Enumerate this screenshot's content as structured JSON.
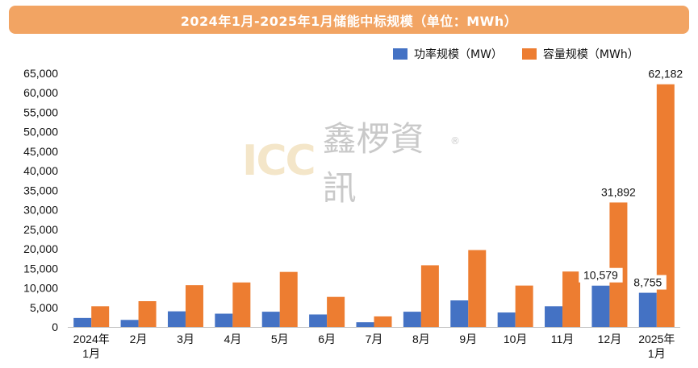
{
  "title": "2024年1月-2025年1月储能中标规模（单位：MWh）",
  "legend": {
    "power_label": "功率规模（MW）",
    "capacity_label": "容量规模（MWh）"
  },
  "colors": {
    "power": "#4472c4",
    "capacity": "#ed7d31",
    "title_bg": "#f2a463"
  },
  "watermark": {
    "brand": "ICC",
    "cn": "鑫椤資訊",
    "reg": "®"
  },
  "chart_data": {
    "type": "bar",
    "title": "2024年1月-2025年1月储能中标规模（单位：MWh）",
    "categories": [
      "2024年\n1月",
      "2月",
      "3月",
      "4月",
      "5月",
      "6月",
      "7月",
      "8月",
      "9月",
      "10月",
      "11月",
      "12月",
      "2025年\n1月"
    ],
    "series": [
      {
        "name": "功率规模（MW）",
        "values": [
          2300,
          1800,
          4000,
          3400,
          3900,
          3200,
          1200,
          3900,
          6800,
          3700,
          5300,
          10579,
          8755
        ]
      },
      {
        "name": "容量规模（MWh）",
        "values": [
          5300,
          6600,
          10700,
          11400,
          14100,
          7700,
          2700,
          15800,
          19700,
          10600,
          14200,
          31892,
          62182
        ]
      }
    ],
    "data_labels": [
      {
        "series": 0,
        "index": 11,
        "text": "10,579"
      },
      {
        "series": 0,
        "index": 12,
        "text": "8,755"
      },
      {
        "series": 1,
        "index": 11,
        "text": "31,892"
      },
      {
        "series": 1,
        "index": 12,
        "text": "62,182"
      }
    ],
    "ylim": [
      0,
      65000
    ],
    "yticks": [
      "0",
      "5,000",
      "10,000",
      "15,000",
      "20,000",
      "25,000",
      "30,000",
      "35,000",
      "40,000",
      "45,000",
      "50,000",
      "55,000",
      "60,000",
      "65,000"
    ],
    "legend_position": "top-right",
    "grid": false
  }
}
